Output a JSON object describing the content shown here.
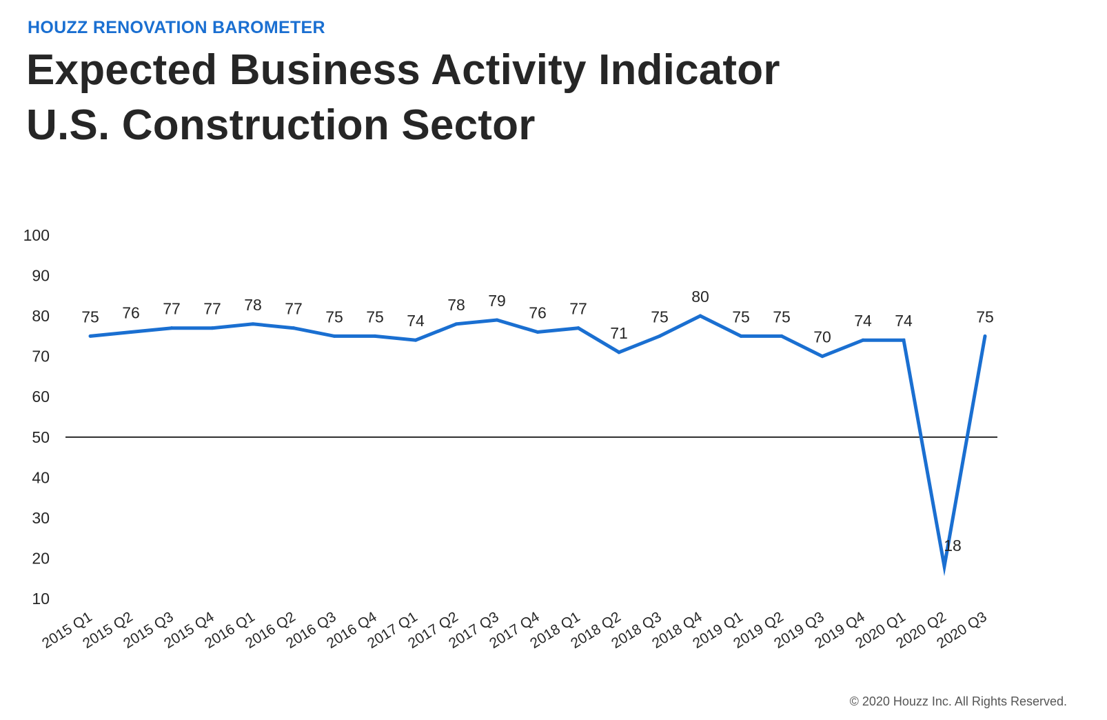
{
  "header": {
    "eyebrow": "HOUZZ RENOVATION BAROMETER",
    "title_line1": "Expected Business Activity Indicator",
    "title_line2": "U.S. Construction Sector"
  },
  "footer": {
    "copyright": "© 2020 Houzz Inc. All Rights Reserved."
  },
  "colors": {
    "accent": "#1a6fd1",
    "line": "#1a6fd1",
    "text": "#262626",
    "reference_line": "#000000"
  },
  "chart_data": {
    "type": "line",
    "title": "Expected Business Activity Indicator U.S. Construction Sector",
    "xlabel": "",
    "ylabel": "",
    "ylim": [
      10,
      100
    ],
    "y_ticks": [
      100,
      90,
      80,
      70,
      60,
      50,
      40,
      30,
      20,
      10
    ],
    "reference_line": 50,
    "grid": false,
    "legend": "none",
    "categories": [
      "2015 Q1",
      "2015 Q2",
      "2015 Q3",
      "2015 Q4",
      "2016 Q1",
      "2016 Q2",
      "2016 Q3",
      "2016 Q4",
      "2017 Q1",
      "2017 Q2",
      "2017 Q3",
      "2017 Q4",
      "2018 Q1",
      "2018 Q2",
      "2018 Q3",
      "2018 Q4",
      "2019 Q1",
      "2019 Q2",
      "2019 Q3",
      "2019 Q4",
      "2020 Q1",
      "2020 Q2",
      "2020 Q3"
    ],
    "series": [
      {
        "name": "Expected Business Activity Indicator",
        "values": [
          75,
          76,
          77,
          77,
          78,
          77,
          75,
          75,
          74,
          78,
          79,
          76,
          77,
          71,
          75,
          80,
          75,
          75,
          70,
          74,
          74,
          18,
          75
        ],
        "labels": [
          "75",
          "76",
          "77",
          "77",
          "78",
          "77",
          "75",
          "75",
          "74",
          "78",
          "79",
          "76",
          "77",
          "71",
          "75",
          "80",
          "75",
          "75",
          "70",
          "74",
          "74",
          "18",
          "75"
        ]
      }
    ]
  }
}
